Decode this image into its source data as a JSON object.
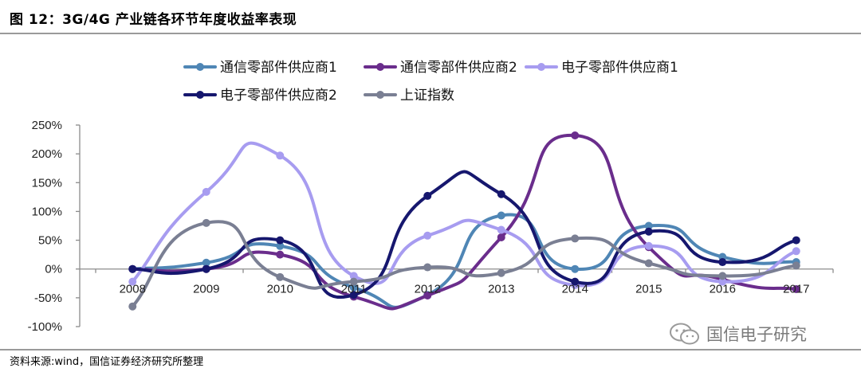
{
  "title": "图 12：3G/4G 产业链各环节年度收益率表现",
  "source": "资料来源:wind，国信证券经济研究所整理",
  "watermark": "国信电子研究",
  "chart_data": {
    "type": "line",
    "categories": [
      "2008",
      "2009",
      "2010",
      "2011",
      "2012",
      "2013",
      "2014",
      "2015",
      "2016",
      "2017"
    ],
    "ylim": [
      -100,
      250
    ],
    "yticks": [
      -100,
      -50,
      0,
      50,
      100,
      150,
      200,
      250
    ],
    "ytick_labels": [
      "-100%",
      "-50%",
      "0%",
      "50%",
      "100%",
      "150%",
      "200%",
      "250%"
    ],
    "grid": false,
    "legend_position": "top",
    "series": [
      {
        "name": "通信零部件供应商1",
        "color": "#4f86b5",
        "values": [
          0,
          11,
          40,
          -32,
          -45,
          93,
          0,
          75,
          21,
          12
        ]
      },
      {
        "name": "通信零部件供应商2",
        "color": "#6a2d8c",
        "values": [
          0,
          0,
          25,
          -48,
          -46,
          55,
          232,
          38,
          -18,
          -35
        ]
      },
      {
        "name": "电子零部件供应商1",
        "color": "#a79cf0",
        "values": [
          -22,
          134,
          197,
          -12,
          58,
          68,
          -28,
          40,
          -22,
          31
        ]
      },
      {
        "name": "电子零部件供应商2",
        "color": "#16176e",
        "values": [
          0,
          0,
          50,
          -45,
          127,
          130,
          -22,
          65,
          12,
          50
        ]
      },
      {
        "name": "上证指数",
        "color": "#7a7f93",
        "values": [
          -65,
          80,
          -14,
          -22,
          3,
          -7,
          53,
          10,
          -12,
          6
        ]
      }
    ]
  }
}
